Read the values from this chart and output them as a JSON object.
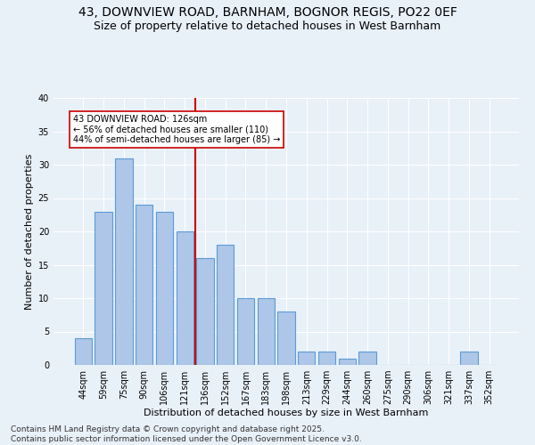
{
  "title1": "43, DOWNVIEW ROAD, BARNHAM, BOGNOR REGIS, PO22 0EF",
  "title2": "Size of property relative to detached houses in West Barnham",
  "xlabel": "Distribution of detached houses by size in West Barnham",
  "ylabel": "Number of detached properties",
  "categories": [
    "44sqm",
    "59sqm",
    "75sqm",
    "90sqm",
    "106sqm",
    "121sqm",
    "136sqm",
    "152sqm",
    "167sqm",
    "183sqm",
    "198sqm",
    "213sqm",
    "229sqm",
    "244sqm",
    "260sqm",
    "275sqm",
    "290sqm",
    "306sqm",
    "321sqm",
    "337sqm",
    "352sqm"
  ],
  "values": [
    4,
    23,
    31,
    24,
    23,
    20,
    16,
    18,
    10,
    10,
    8,
    2,
    2,
    1,
    2,
    0,
    0,
    0,
    0,
    2,
    0
  ],
  "bar_color": "#aec6e8",
  "bar_edge_color": "#5b9bd5",
  "vline_x": 5.5,
  "vline_color": "#cc0000",
  "annotation_text": "43 DOWNVIEW ROAD: 126sqm\n← 56% of detached houses are smaller (110)\n44% of semi-detached houses are larger (85) →",
  "annotation_box_color": "#ffffff",
  "annotation_box_edge": "#cc0000",
  "bg_color": "#e8f0f8",
  "grid_color": "#ffffff",
  "footer": "Contains HM Land Registry data © Crown copyright and database right 2025.\nContains public sector information licensed under the Open Government Licence v3.0.",
  "ylim": [
    0,
    40
  ],
  "yticks": [
    0,
    5,
    10,
    15,
    20,
    25,
    30,
    35,
    40
  ],
  "title1_fontsize": 10,
  "title2_fontsize": 9,
  "xlabel_fontsize": 8,
  "ylabel_fontsize": 8,
  "tick_fontsize": 7,
  "footer_fontsize": 6.5
}
